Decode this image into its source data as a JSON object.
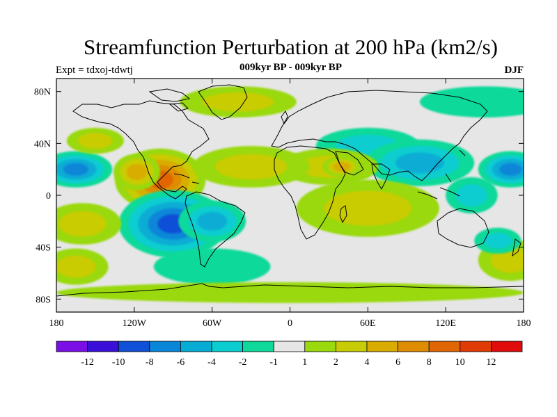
{
  "title": "Streamfunction Perturbation at 200 hPa (km2/s)",
  "experiment_label": "Expt = tdxoj-tdwtj",
  "subtitle": "009kyr BP - 009kyr BP",
  "season": "DJF",
  "axes": {
    "lon_ticks": [
      {
        "lon": -180,
        "label": "180"
      },
      {
        "lon": -120,
        "label": "120W"
      },
      {
        "lon": -60,
        "label": "60W"
      },
      {
        "lon": 0,
        "label": "0"
      },
      {
        "lon": 60,
        "label": "60E"
      },
      {
        "lon": 120,
        "label": "120E"
      },
      {
        "lon": 180,
        "label": "180"
      }
    ],
    "lat_ticks": [
      {
        "lat": 80,
        "label": "80N"
      },
      {
        "lat": 40,
        "label": "40N"
      },
      {
        "lat": 0,
        "label": "0"
      },
      {
        "lat": -40,
        "label": "40S"
      },
      {
        "lat": -80,
        "label": "80S"
      }
    ],
    "lon_range": [
      -180,
      180
    ],
    "lat_range": [
      -90,
      90
    ]
  },
  "colorbar": {
    "colors": [
      "#7b10e6",
      "#3a10d8",
      "#0f50d6",
      "#0a86d8",
      "#07acd4",
      "#0bcdd0",
      "#0fd99a",
      "#e6e6e6",
      "#99d90e",
      "#c8cc06",
      "#d9ac02",
      "#de8c02",
      "#e06503",
      "#e03a05",
      "#e00c0c"
    ],
    "labels": [
      "-12",
      "-10",
      "-8",
      "-6",
      "-4",
      "-2",
      "-1",
      "1",
      "2",
      "4",
      "6",
      "8",
      "10",
      "12"
    ]
  },
  "field_anomalies": [
    {
      "lon": -100,
      "lat": 12,
      "rx": 35,
      "ry": 24,
      "level": 5
    },
    {
      "lon": -118,
      "lat": 18,
      "rx": 18,
      "ry": 14,
      "level": 3
    },
    {
      "lon": -90,
      "lat": -22,
      "rx": 42,
      "ry": 26,
      "level": -5
    },
    {
      "lon": -60,
      "lat": -20,
      "rx": 26,
      "ry": 16,
      "level": -3
    },
    {
      "lon": -165,
      "lat": 20,
      "rx": 28,
      "ry": 14,
      "level": -4
    },
    {
      "lon": 170,
      "lat": 20,
      "rx": 25,
      "ry": 14,
      "level": -4
    },
    {
      "lon": 60,
      "lat": 38,
      "rx": 40,
      "ry": 14,
      "level": -2
    },
    {
      "lon": 100,
      "lat": 25,
      "rx": 42,
      "ry": 18,
      "level": -3
    },
    {
      "lon": 140,
      "lat": 0,
      "rx": 20,
      "ry": 14,
      "level": -2
    },
    {
      "lon": 30,
      "lat": 22,
      "rx": 38,
      "ry": 14,
      "level": 2
    },
    {
      "lon": -30,
      "lat": 22,
      "rx": 45,
      "ry": 16,
      "level": 2
    },
    {
      "lon": 60,
      "lat": -10,
      "rx": 55,
      "ry": 22,
      "level": 2
    },
    {
      "lon": -160,
      "lat": -22,
      "rx": 30,
      "ry": 16,
      "level": 2
    },
    {
      "lon": 170,
      "lat": -50,
      "rx": 25,
      "ry": 16,
      "level": 2
    },
    {
      "lon": -165,
      "lat": -55,
      "rx": 25,
      "ry": 14,
      "level": 2
    },
    {
      "lon": -60,
      "lat": -55,
      "rx": 45,
      "ry": 14,
      "level": -1
    },
    {
      "lon": 160,
      "lat": -35,
      "rx": 18,
      "ry": 10,
      "level": -2
    },
    {
      "lon": -40,
      "lat": 72,
      "rx": 45,
      "ry": 12,
      "level": 2
    },
    {
      "lon": 150,
      "lat": 72,
      "rx": 50,
      "ry": 12,
      "level": -1
    },
    {
      "lon": -150,
      "lat": 42,
      "rx": 22,
      "ry": 10,
      "level": 2
    },
    {
      "lon": 40,
      "lat": 22,
      "rx": 15,
      "ry": 8,
      "level": 3
    },
    {
      "lon": 0,
      "lat": -75,
      "rx": 180,
      "ry": 8,
      "level": 1
    }
  ]
}
